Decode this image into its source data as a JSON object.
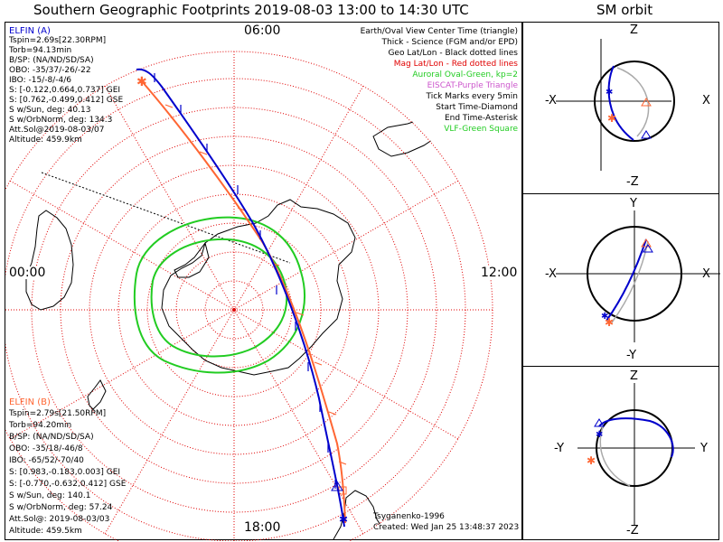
{
  "titles": {
    "main": "Southern Geographic Footprints 2019-08-03 13:00 to 14:30 UTC",
    "orbit": "SM orbit"
  },
  "clock_labels": {
    "top": "06:00",
    "left": "00:00",
    "right": "12:00",
    "bottom": "18:00"
  },
  "legend": [
    {
      "text": "Earth/Oval View Center Time (triangle)",
      "color": "#000000"
    },
    {
      "text": "Thick - Science (FGM and/or EPD)",
      "color": "#000000"
    },
    {
      "text": "Geo Lat/Lon - Black dotted lines",
      "color": "#000000"
    },
    {
      "text": "Mag Lat/Lon - Red dotted lines",
      "color": "#e00000"
    },
    {
      "text": "Auroral Oval-Green, kp=2",
      "color": "#22cc22"
    },
    {
      "text": "EISCAT-Purple Triangle",
      "color": "#cc55cc"
    },
    {
      "text": "Tick Marks every 5min",
      "color": "#000000"
    },
    {
      "text": "Start Time-Diamond",
      "color": "#000000"
    },
    {
      "text": "End Time-Asterisk",
      "color": "#000000"
    },
    {
      "text": "VLF-Green Square",
      "color": "#22cc22"
    }
  ],
  "elfin_a": {
    "color": "#0000cc",
    "lines": [
      "ELFIN (A)",
      "Tspin=2.69s[22.30RPM]",
      "Torb=94.13min",
      "B/SP: (NA/ND/SD/SA)",
      "OBO: -35/37/-26/-22",
      "IBO: -15/-8/-4/6",
      "S: [-0.122,0.664,0.737] GEI",
      "S: [0.762,-0.499,0.412] GSE",
      "S w/Sun, deg: 40.13",
      "S w/OrbNorm, deg: 134.3",
      "Att.Sol@2019-08-03/07",
      "Altitude: 459.9km"
    ]
  },
  "elfin_b": {
    "color": "#ff6633",
    "lines": [
      "ELFIN (B)",
      "Tspin=2.79s[21.50RPM]",
      "Torb=94.20min",
      "B/SP: (NA/ND/SD/SA)",
      "OBO: -35/18/-46/8",
      "IBO: -65/52/-70/40",
      "S: [0.983,-0.183,0.003] GEI",
      "S: [-0.770,-0.632,0.412] GSE",
      "S w/Sun, deg: 140.1",
      "S w/OrbNorm, deg: 57.24",
      "Att.Sol@: 2019-08-03/03",
      "Altitude: 459.5km"
    ]
  },
  "credits": {
    "author": "Tsyganenko-1996",
    "created": "Created: Wed Jan 25 13:48:37 2023"
  },
  "orbit_panels": [
    {
      "top": "Z",
      "bottom": "-Z",
      "left": "-X",
      "right": "X"
    },
    {
      "top": "Y",
      "bottom": "-Y",
      "left": "-X",
      "right": "X"
    },
    {
      "top": "Z",
      "bottom": "-Z",
      "left": "-Y",
      "right": "Y"
    }
  ],
  "colors": {
    "elfin_a": "#0000cc",
    "elfin_b": "#ff6633",
    "mag_grid": "#e00000",
    "auroral_oval": "#22cc22",
    "orbit_back": "#aaaaaa"
  }
}
